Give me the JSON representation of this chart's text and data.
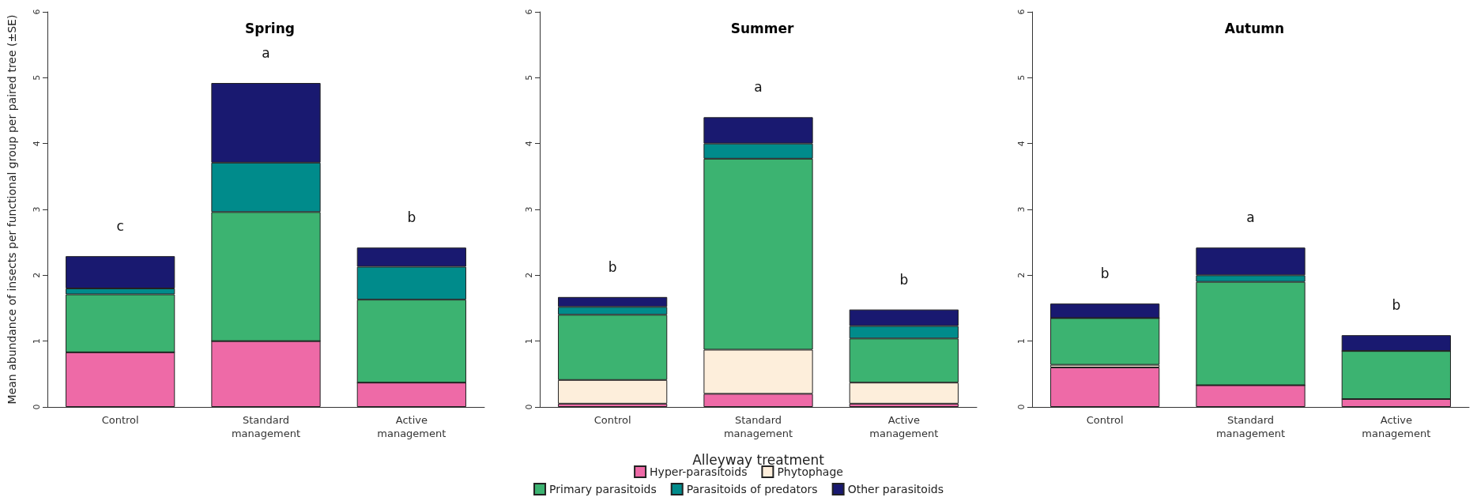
{
  "chart_data": [
    {
      "type": "bar",
      "title": "Spring",
      "ylabel": "Mean abundance of insects per functional group per paired tree (±SE)",
      "categories": [
        "Control",
        "Standard\nmanagement",
        "Active\nmanagement"
      ],
      "stacked": true,
      "ylim": [
        0,
        6
      ],
      "yticks": [
        0,
        1,
        2,
        3,
        4,
        5,
        6
      ],
      "series": [
        {
          "color": "#ee6aa7",
          "values": [
            0.83,
            1.0,
            0.37
          ]
        },
        {
          "color": "#fdeedb",
          "values": [
            0,
            0,
            0
          ]
        },
        {
          "color": "#3cb371",
          "values": [
            0.88,
            1.96,
            1.26
          ]
        },
        {
          "color": "#008b8b",
          "values": [
            0.09,
            0.75,
            0.5
          ]
        },
        {
          "color": "#191970",
          "values": [
            0.49,
            1.21,
            0.29
          ]
        }
      ],
      "annotations": [
        "c",
        "a",
        "b"
      ]
    },
    {
      "type": "bar",
      "title": "Summer",
      "xlabel": "Alleyway treatment",
      "categories": [
        "Control",
        "Standard\nmanagement",
        "Active\nmanagement"
      ],
      "stacked": true,
      "ylim": [
        0,
        6
      ],
      "yticks": [
        0,
        1,
        2,
        3,
        4,
        5,
        6
      ],
      "legend": "bottom",
      "series": [
        {
          "name": "Hyper-parasitoids",
          "color": "#ee6aa7",
          "values": [
            0.05,
            0.2,
            0.05
          ]
        },
        {
          "name": "Phytophage",
          "color": "#fdeedb",
          "values": [
            0.36,
            0.67,
            0.32
          ]
        },
        {
          "name": "Primary parasitoids",
          "color": "#3cb371",
          "values": [
            0.99,
            2.9,
            0.67
          ]
        },
        {
          "name": "Parasitoids of predators",
          "color": "#008b8b",
          "values": [
            0.12,
            0.23,
            0.19
          ]
        },
        {
          "name": "Other parasitoids",
          "color": "#191970",
          "values": [
            0.15,
            0.4,
            0.25
          ]
        }
      ],
      "annotations": [
        "b",
        "a",
        "b"
      ]
    },
    {
      "type": "bar",
      "title": "Autumn",
      "categories": [
        "Control",
        "Standard\nmanagement",
        "Active\nmanagement"
      ],
      "stacked": true,
      "ylim": [
        0,
        6
      ],
      "yticks": [
        0,
        1,
        2,
        3,
        4,
        5,
        6
      ],
      "series": [
        {
          "color": "#ee6aa7",
          "values": [
            0.6,
            0.33,
            0.12
          ]
        },
        {
          "color": "#fdeedb",
          "values": [
            0.04,
            0,
            0
          ]
        },
        {
          "color": "#3cb371",
          "values": [
            0.71,
            1.57,
            0.73
          ]
        },
        {
          "color": "#008b8b",
          "values": [
            0,
            0.1,
            0
          ]
        },
        {
          "color": "#191970",
          "values": [
            0.22,
            0.42,
            0.24
          ]
        }
      ],
      "annotations": [
        "b",
        "a",
        "b"
      ]
    }
  ]
}
